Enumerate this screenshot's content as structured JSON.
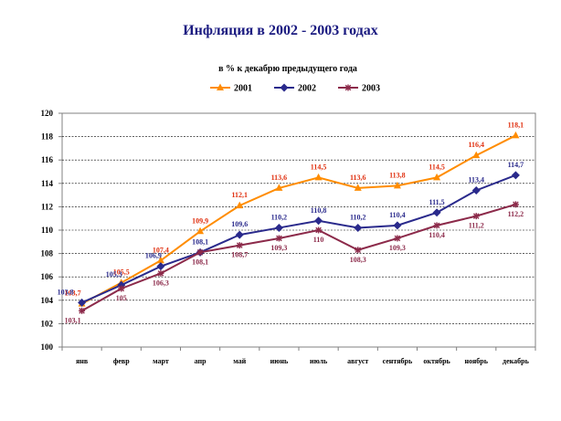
{
  "chart_data": {
    "type": "line",
    "title": "Инфляция в 2002 - 2003 годах",
    "subtitle": "в % к декабрю предыдущего года",
    "categories": [
      "янв",
      "февр",
      "март",
      "апр",
      "май",
      "июнь",
      "июль",
      "август",
      "сентябрь",
      "октябрь",
      "ноябрь",
      "декабрь"
    ],
    "ylim": [
      100,
      120
    ],
    "yticks": [
      "100",
      "102",
      "104",
      "106",
      "108",
      "110",
      "112",
      "114",
      "116",
      "118",
      "120"
    ],
    "grid": true,
    "legend_position": "top",
    "series": [
      {
        "name": "2001",
        "color": "#ff8c00",
        "label_color": "#e03010",
        "marker": "triangle",
        "values": [
          103.7,
          105.5,
          107.4,
          109.9,
          112.1,
          113.6,
          114.5,
          113.6,
          113.8,
          114.5,
          116.4,
          118.1
        ],
        "labels": [
          "103,7",
          "105,5",
          "107,4",
          "109,9",
          "112,1",
          "113,6",
          "114,5",
          "113,6",
          "113,8",
          "114,5",
          "116,4",
          "118,1"
        ]
      },
      {
        "name": "2002",
        "color": "#2a2a8c",
        "label_color": "#2a2a8c",
        "marker": "diamond",
        "values": [
          103.8,
          105.3,
          106.9,
          108.1,
          109.6,
          110.2,
          110.8,
          110.2,
          110.4,
          111.5,
          113.4,
          114.7
        ],
        "labels": [
          "103,8",
          "105,3",
          "106,9",
          "108,1",
          "109,6",
          "110,2",
          "110,8",
          "110,2",
          "110,4",
          "111,5",
          "113,4",
          "114,7"
        ]
      },
      {
        "name": "2003",
        "color": "#8c2a4a",
        "label_color": "#8c2a4a",
        "marker": "star",
        "values": [
          103.1,
          105.0,
          106.3,
          108.1,
          108.7,
          109.3,
          110.0,
          108.3,
          109.3,
          110.4,
          111.2,
          112.2
        ],
        "labels": [
          "103,1",
          "105",
          "106,3",
          "108,1",
          "108,7",
          "109,3",
          "110",
          "108,3",
          "109,3",
          "110,4",
          "111,2",
          "112,2"
        ]
      }
    ]
  }
}
